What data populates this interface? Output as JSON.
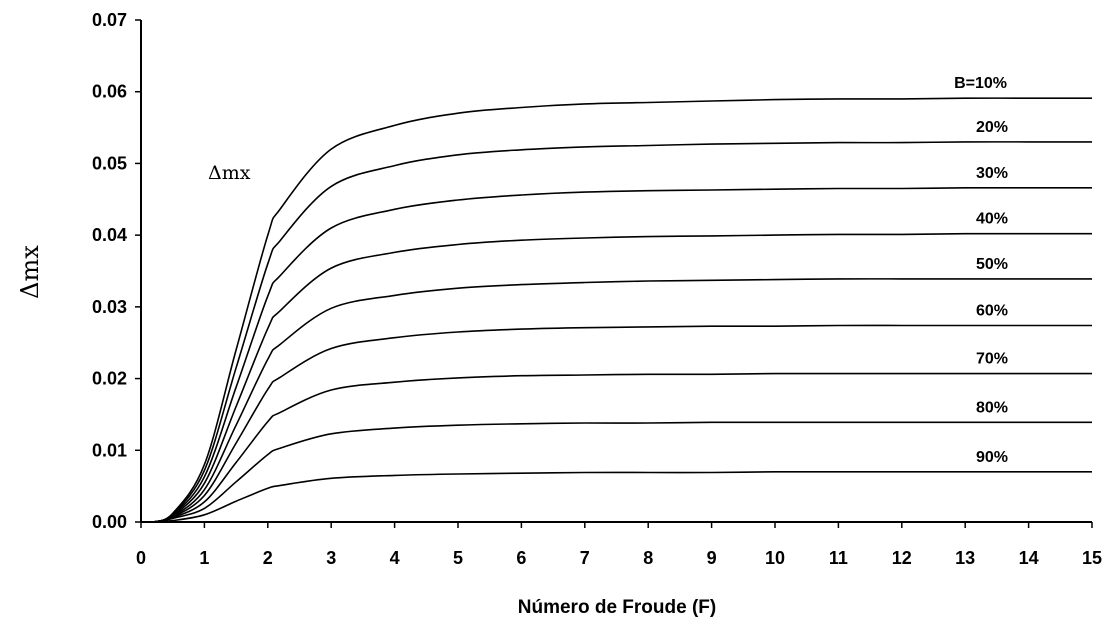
{
  "chart_data": {
    "type": "line",
    "xlabel": "Número de Froude (F)",
    "ylabel": "Δmx",
    "annotation": "Δmx",
    "xlim": [
      0,
      15
    ],
    "ylim": [
      0,
      0.07
    ],
    "x_ticks": [
      "0",
      "1",
      "2",
      "3",
      "4",
      "5",
      "6",
      "7",
      "8",
      "9",
      "10",
      "11",
      "12",
      "13",
      "14",
      "15"
    ],
    "y_ticks": [
      "0.00",
      "0.01",
      "0.02",
      "0.03",
      "0.04",
      "0.05",
      "0.06",
      "0.07"
    ],
    "grid": false,
    "x": [
      0.2,
      0.5,
      1,
      1.5,
      2,
      2.2,
      3,
      4,
      5,
      6,
      7,
      8,
      9,
      10,
      11,
      12,
      13,
      14,
      15
    ],
    "series": [
      {
        "name": "B=10%",
        "values": [
          0,
          0.0012,
          0.008,
          0.024,
          0.04,
          0.0437,
          0.052,
          0.0553,
          0.057,
          0.0578,
          0.0583,
          0.0585,
          0.0587,
          0.0589,
          0.059,
          0.059,
          0.0591,
          0.0591,
          0.0591
        ]
      },
      {
        "name": "20%",
        "values": [
          0,
          0.0011,
          0.0072,
          0.0215,
          0.036,
          0.0393,
          0.0468,
          0.0497,
          0.0512,
          0.0519,
          0.0523,
          0.0525,
          0.0527,
          0.0528,
          0.0529,
          0.0529,
          0.053,
          0.053,
          0.053
        ]
      },
      {
        "name": "30%",
        "values": [
          0,
          0.001,
          0.0063,
          0.0188,
          0.0315,
          0.0344,
          0.041,
          0.0436,
          0.0449,
          0.0456,
          0.046,
          0.0462,
          0.0463,
          0.0464,
          0.0465,
          0.0465,
          0.0466,
          0.0466,
          0.0466
        ]
      },
      {
        "name": "40%",
        "values": [
          0,
          0.0009,
          0.0054,
          0.0161,
          0.027,
          0.0295,
          0.0354,
          0.0376,
          0.0387,
          0.0393,
          0.0396,
          0.0398,
          0.0399,
          0.04,
          0.0401,
          0.0401,
          0.0402,
          0.0402,
          0.0402
        ]
      },
      {
        "name": "50%",
        "values": [
          0,
          0.0008,
          0.0045,
          0.0135,
          0.0227,
          0.0248,
          0.0298,
          0.0316,
          0.0326,
          0.0331,
          0.0334,
          0.0336,
          0.0337,
          0.0338,
          0.0339,
          0.0339,
          0.0339,
          0.0339,
          0.0339
        ]
      },
      {
        "name": "60%",
        "values": [
          0,
          0.0007,
          0.0037,
          0.011,
          0.0185,
          0.0202,
          0.0242,
          0.0257,
          0.0265,
          0.0269,
          0.0271,
          0.0272,
          0.0273,
          0.0273,
          0.0274,
          0.0274,
          0.0274,
          0.0274,
          0.0274
        ]
      },
      {
        "name": "70%",
        "values": [
          0,
          0.0006,
          0.0028,
          0.0083,
          0.014,
          0.0153,
          0.0184,
          0.0195,
          0.0201,
          0.0204,
          0.0205,
          0.0206,
          0.0206,
          0.0207,
          0.0207,
          0.0207,
          0.0207,
          0.0207,
          0.0207
        ]
      },
      {
        "name": "80%",
        "values": [
          0,
          0.0005,
          0.0019,
          0.0056,
          0.0094,
          0.0103,
          0.0123,
          0.0131,
          0.0135,
          0.0137,
          0.0138,
          0.0138,
          0.0139,
          0.0139,
          0.0139,
          0.0139,
          0.0139,
          0.0139,
          0.0139
        ]
      },
      {
        "name": "90%",
        "values": [
          0,
          0.0002,
          0.001,
          0.0029,
          0.0047,
          0.0051,
          0.0061,
          0.0065,
          0.0067,
          0.0068,
          0.0069,
          0.0069,
          0.0069,
          0.007,
          0.007,
          0.007,
          0.007,
          0.007,
          0.007
        ]
      }
    ]
  }
}
